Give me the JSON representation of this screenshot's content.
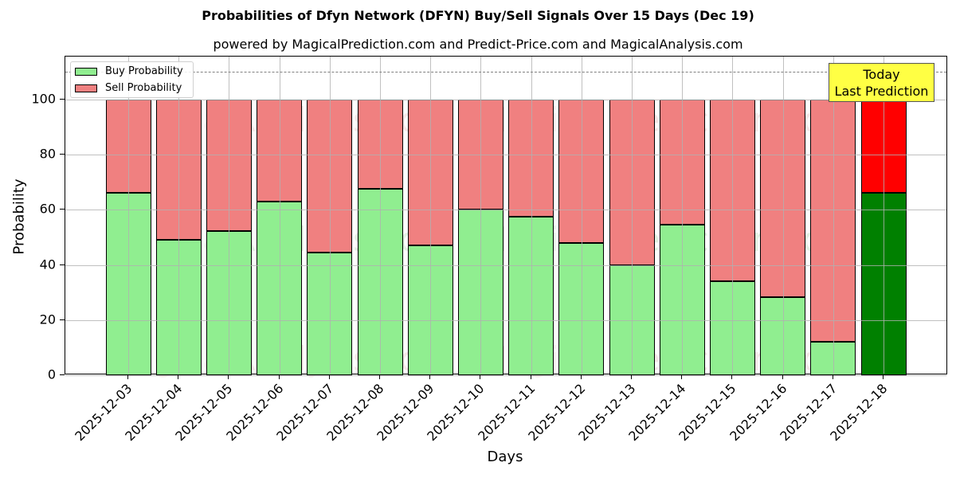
{
  "chart_data": {
    "type": "bar",
    "stacked": true,
    "title": "Probabilities of Dfyn Network (DFYN) Buy/Sell Signals Over 15 Days (Dec 19)",
    "subtitle": "powered by MagicalPrediction.com and Predict-Price.com and MagicalAnalysis.com",
    "xlabel": "Days",
    "ylabel": "Probability",
    "ylim": [
      0,
      115
    ],
    "yticks": [
      0,
      20,
      40,
      60,
      80,
      100
    ],
    "grid": true,
    "legend_position": "upper left",
    "categories": [
      "2025-12-03",
      "2025-12-04",
      "2025-12-05",
      "2025-12-06",
      "2025-12-07",
      "2025-12-08",
      "2025-12-09",
      "2025-12-10",
      "2025-12-11",
      "2025-12-12",
      "2025-12-13",
      "2025-12-14",
      "2025-12-15",
      "2025-12-16",
      "2025-12-17",
      "2025-12-18"
    ],
    "series": [
      {
        "name": "Buy Probability",
        "color": "#90ee90",
        "values": [
          66.2,
          49.1,
          52.2,
          62.9,
          44.4,
          67.5,
          47.0,
          60.0,
          57.4,
          48.0,
          40.0,
          54.5,
          34.0,
          28.2,
          12.0,
          66.2
        ]
      },
      {
        "name": "Sell Probability",
        "color": "#f08080",
        "values": [
          33.8,
          50.9,
          47.8,
          37.1,
          55.6,
          32.5,
          53.0,
          40.0,
          42.6,
          52.0,
          60.0,
          45.5,
          66.0,
          71.8,
          88.0,
          33.8
        ]
      }
    ],
    "highlight": {
      "index": 15,
      "buy_color": "#008000",
      "sell_color": "#ff0000"
    },
    "reference_line": {
      "y": 110,
      "style": "dashed",
      "color": "#808080"
    },
    "annotations": [
      {
        "text": "Today\nLast Prediction",
        "line1": "Today",
        "line2": "Last Prediction",
        "x_index": 15,
        "y": 105,
        "background": "#ffff44"
      }
    ]
  },
  "legend": {
    "buy_label": "Buy Probability",
    "sell_label": "Sell Probability"
  },
  "watermarks": [
    "MagicalAnalysis.com",
    "MagicalPrediction.com"
  ]
}
